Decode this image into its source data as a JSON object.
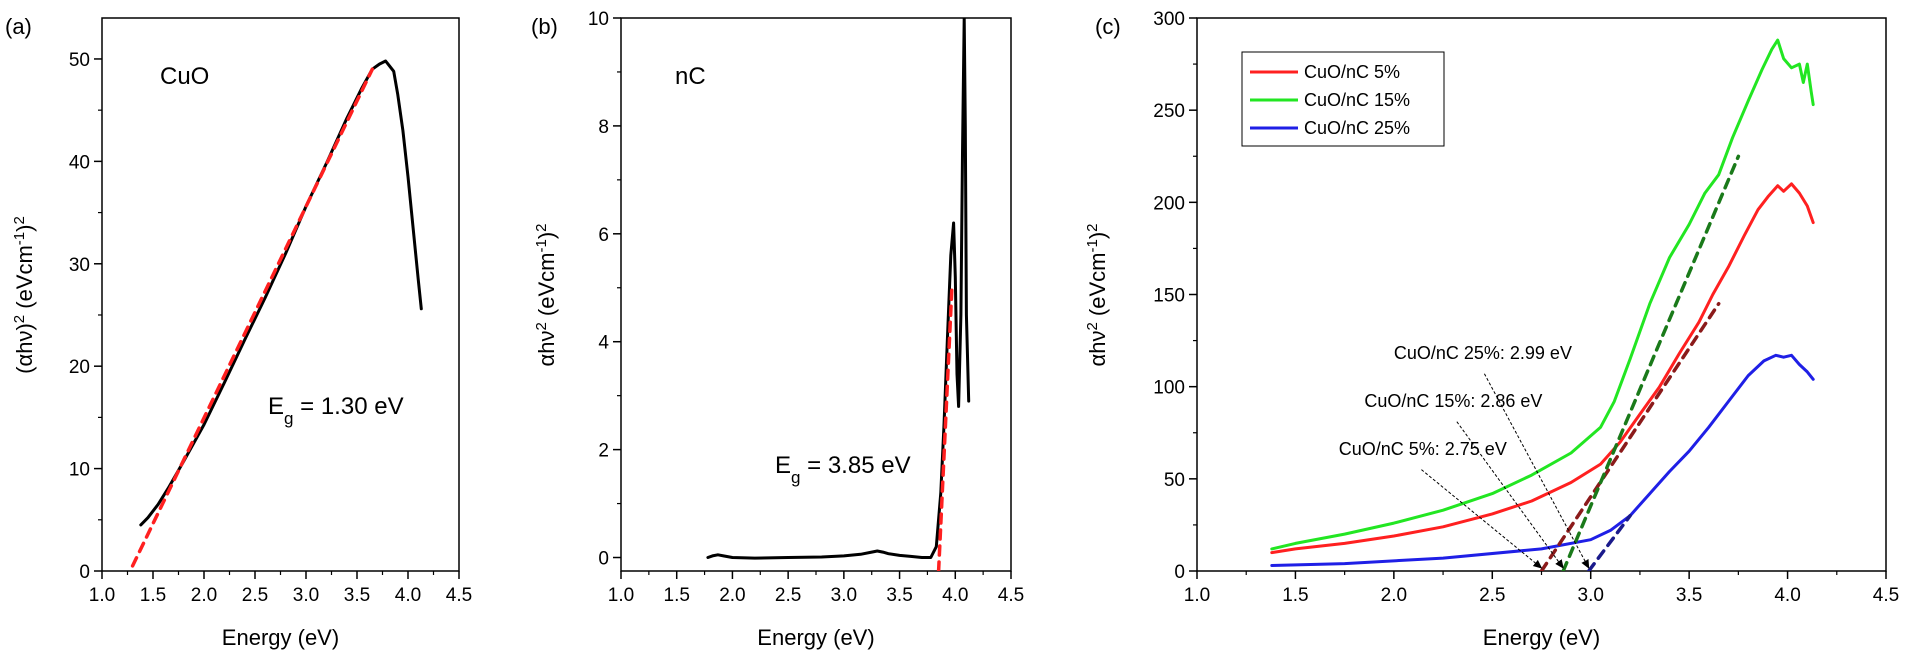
{
  "chart_data": [
    {
      "type": "line",
      "panel_label": "(a)",
      "material_label": "CuO",
      "gap_label": {
        "prefix": "E",
        "sub": "g",
        "suffix": " = 1.30 eV"
      },
      "xlabel": "Energy (eV)",
      "ylabel": {
        "parts": [
          [
            "(αhν)",
            "n"
          ],
          [
            "2",
            "sup"
          ],
          [
            " (eVcm",
            "n"
          ],
          [
            "-1",
            "sup"
          ],
          [
            ")",
            "n"
          ],
          [
            "2",
            "sup"
          ]
        ]
      },
      "xlim": [
        1.0,
        4.5
      ],
      "ylim": [
        0,
        54
      ],
      "xticks": [
        1.0,
        1.5,
        2.0,
        2.5,
        3.0,
        3.5,
        4.0,
        4.5
      ],
      "yticks": [
        0,
        10,
        20,
        30,
        40,
        50
      ],
      "tick_decimals": {
        "x": 1,
        "y": 0
      },
      "series": [
        {
          "color": "#000000",
          "dash": false,
          "x": [
            1.38,
            1.45,
            1.55,
            1.65,
            1.8,
            2.0,
            2.2,
            2.4,
            2.6,
            2.8,
            3.0,
            3.2,
            3.4,
            3.55,
            3.65,
            3.72,
            3.78,
            3.82,
            3.86,
            3.9,
            3.95,
            4.0,
            4.05,
            4.1,
            4.13
          ],
          "y": [
            4.5,
            5.2,
            6.5,
            8.1,
            10.7,
            14.3,
            18.4,
            22.6,
            26.7,
            31.0,
            35.6,
            39.8,
            44.2,
            47.2,
            49.0,
            49.5,
            49.8,
            49.3,
            48.8,
            46.5,
            43.0,
            38.5,
            33.5,
            28.5,
            25.6
          ]
        },
        {
          "color": "#ff2020",
          "dash": true,
          "x": [
            1.3,
            3.65
          ],
          "y": [
            0.5,
            49.0
          ]
        }
      ]
    },
    {
      "type": "line",
      "panel_label": "(b)",
      "material_label": "nC",
      "gap_label": {
        "prefix": "E",
        "sub": "g",
        "suffix": " = 3.85 eV"
      },
      "xlabel": "Energy (eV)",
      "ylabel": {
        "parts": [
          [
            "αhν",
            "n"
          ],
          [
            "2",
            "sup"
          ],
          [
            " (eVcm",
            "n"
          ],
          [
            "-1",
            "sup"
          ],
          [
            ")",
            "n"
          ],
          [
            "2",
            "sup"
          ]
        ]
      },
      "xlim": [
        1.0,
        4.5
      ],
      "ylim": [
        -0.25,
        10
      ],
      "xticks": [
        1.0,
        1.5,
        2.0,
        2.5,
        3.0,
        3.5,
        4.0,
        4.5
      ],
      "yticks": [
        0,
        2,
        4,
        6,
        8,
        10
      ],
      "tick_decimals": {
        "x": 1,
        "y": 0
      },
      "series": [
        {
          "color": "#000000",
          "dash": false,
          "x": [
            1.78,
            1.82,
            1.87,
            1.92,
            2.0,
            2.2,
            2.5,
            2.8,
            3.0,
            3.15,
            3.25,
            3.3,
            3.35,
            3.4,
            3.5,
            3.6,
            3.7,
            3.78,
            3.83,
            3.87,
            3.9,
            3.93,
            3.96,
            3.985,
            4.0,
            4.015,
            4.03,
            4.05,
            4.065,
            4.08,
            4.09,
            4.1,
            4.12
          ],
          "y": [
            0.0,
            0.03,
            0.05,
            0.03,
            0.0,
            -0.01,
            0.0,
            0.01,
            0.03,
            0.06,
            0.1,
            0.12,
            0.1,
            0.07,
            0.04,
            0.02,
            0.0,
            0.0,
            0.2,
            1.2,
            2.5,
            4.1,
            5.6,
            6.2,
            5.2,
            3.4,
            2.8,
            4.5,
            7.5,
            10.0,
            8.0,
            4.5,
            2.9
          ]
        },
        {
          "color": "#ff2020",
          "dash": true,
          "x": [
            3.85,
            3.97
          ],
          "y": [
            -0.25,
            5.0
          ]
        }
      ]
    },
    {
      "type": "line",
      "panel_label": "(c)",
      "xlabel": "Energy (eV)",
      "ylabel": {
        "parts": [
          [
            "αhν",
            "n"
          ],
          [
            "2",
            "sup"
          ],
          [
            " (eVcm",
            "n"
          ],
          [
            "-1",
            "sup"
          ],
          [
            ")",
            "n"
          ],
          [
            "2",
            "sup"
          ]
        ]
      },
      "xlim": [
        1.0,
        4.5
      ],
      "ylim": [
        0,
        300
      ],
      "xticks": [
        1.0,
        1.5,
        2.0,
        2.5,
        3.0,
        3.5,
        4.0,
        4.5
      ],
      "yticks": [
        0,
        50,
        100,
        150,
        200,
        250,
        300
      ],
      "tick_decimals": {
        "x": 1,
        "y": 0
      },
      "legend": [
        {
          "name": "CuO/nC 5%",
          "color": "#ff2020"
        },
        {
          "name": "CuO/nC 15%",
          "color": "#22e622"
        },
        {
          "name": "CuO/nC 25%",
          "color": "#1f1fe6"
        }
      ],
      "series": [
        {
          "name": "CuO/nC 5%",
          "color": "#ff2020",
          "dash": false,
          "x": [
            1.38,
            1.5,
            1.75,
            2.0,
            2.25,
            2.5,
            2.7,
            2.9,
            3.05,
            3.15,
            3.25,
            3.35,
            3.45,
            3.55,
            3.62,
            3.7,
            3.78,
            3.85,
            3.9,
            3.95,
            3.98,
            4.02,
            4.06,
            4.1,
            4.13
          ],
          "y": [
            10,
            12,
            15,
            19,
            24,
            31,
            38,
            48,
            58,
            70,
            85,
            100,
            118,
            135,
            150,
            165,
            182,
            196,
            203,
            209,
            206,
            210,
            205,
            198,
            189
          ]
        },
        {
          "name": "CuO/nC 15%",
          "color": "#22e622",
          "dash": false,
          "x": [
            1.38,
            1.5,
            1.75,
            2.0,
            2.25,
            2.5,
            2.7,
            2.9,
            3.05,
            3.12,
            3.2,
            3.3,
            3.4,
            3.5,
            3.58,
            3.65,
            3.72,
            3.8,
            3.87,
            3.92,
            3.95,
            3.98,
            4.02,
            4.06,
            4.08,
            4.1,
            4.12,
            4.13
          ],
          "y": [
            12,
            15,
            20,
            26,
            33,
            42,
            52,
            64,
            78,
            92,
            115,
            145,
            170,
            188,
            205,
            215,
            235,
            255,
            272,
            283,
            288,
            278,
            273,
            275,
            265,
            275,
            260,
            253
          ]
        },
        {
          "name": "CuO/nC 25%",
          "color": "#1f1fe6",
          "dash": false,
          "x": [
            1.38,
            1.75,
            2.25,
            2.75,
            3.0,
            3.1,
            3.2,
            3.3,
            3.4,
            3.5,
            3.6,
            3.7,
            3.8,
            3.88,
            3.94,
            3.98,
            4.02,
            4.06,
            4.1,
            4.13
          ],
          "y": [
            3,
            4,
            7,
            12,
            17,
            22,
            30,
            42,
            54,
            65,
            78,
            92,
            106,
            114,
            117,
            116,
            117,
            112,
            108,
            104
          ]
        },
        {
          "color": "#8b1a1a",
          "dash": true,
          "x": [
            2.75,
            3.65
          ],
          "y": [
            0,
            145
          ]
        },
        {
          "color": "#1a7a1a",
          "dash": true,
          "x": [
            2.86,
            3.75
          ],
          "y": [
            0,
            225
          ]
        },
        {
          "color": "#1a1a8b",
          "dash": true,
          "x": [
            2.99,
            3.2
          ],
          "y": [
            0,
            30
          ]
        }
      ],
      "annotations": [
        {
          "text": "CuO/nC 25%: 2.99 eV",
          "label_x": 2.0,
          "label_y": 115,
          "anchor": "start",
          "arrow_from": [
            2.46,
            107
          ],
          "arrow_to": [
            2.99,
            0
          ]
        },
        {
          "text": "CuO/nC 15%: 2.86 eV",
          "label_x": 1.85,
          "label_y": 89,
          "anchor": "start",
          "arrow_from": [
            2.32,
            81
          ],
          "arrow_to": [
            2.86,
            0
          ]
        },
        {
          "text": "CuO/nC 5%: 2.75 eV",
          "label_x": 1.72,
          "label_y": 63,
          "anchor": "start",
          "arrow_from": [
            2.14,
            55
          ],
          "arrow_to": [
            2.75,
            0
          ]
        }
      ]
    }
  ]
}
